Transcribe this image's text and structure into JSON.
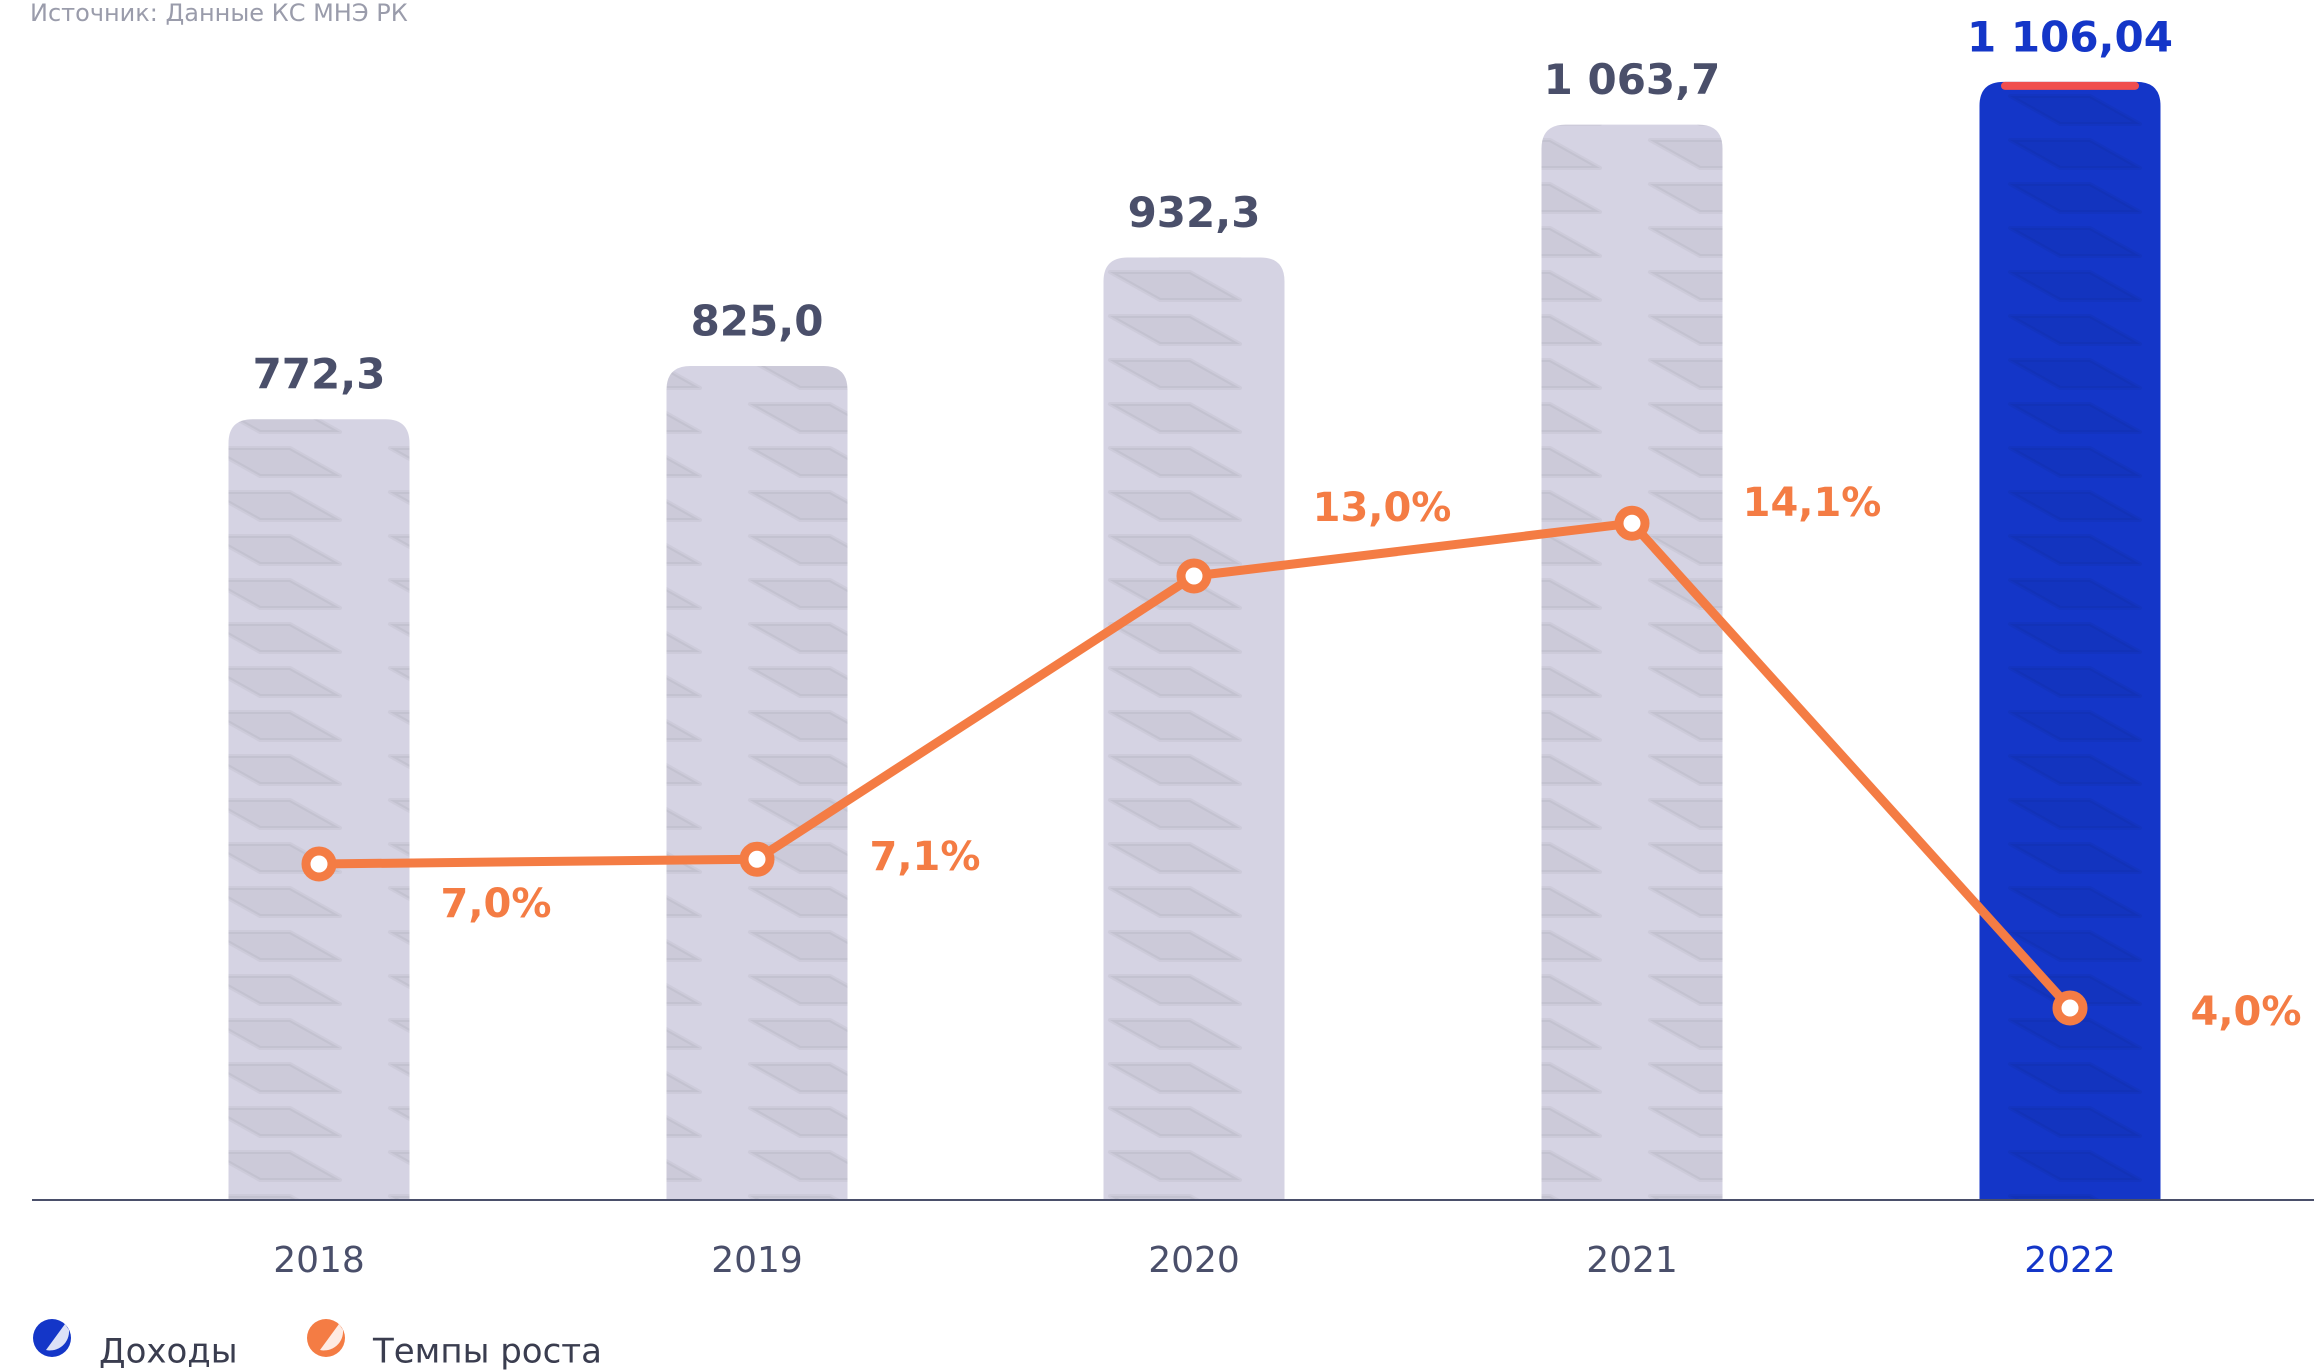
{
  "chart_data": {
    "type": "bar_line",
    "source": "Источник: Данные КС МНЭ РК",
    "categories": [
      "2018",
      "2019",
      "2020",
      "2021",
      "2022"
    ],
    "category_colors": [
      "#4a4f6a",
      "#4a4f6a",
      "#4a4f6a",
      "#4a4f6a",
      "#1436c8"
    ],
    "ylim": [
      0,
      1187
    ],
    "y2lim": [
      0,
      25
    ],
    "series": [
      {
        "name": "Доходы",
        "type": "bar",
        "colors": [
          "#d5d3e3",
          "#d5d3e3",
          "#d5d3e3",
          "#d5d3e3",
          "#1436c8"
        ],
        "label_colors": [
          "#4a4f6a",
          "#4a4f6a",
          "#4a4f6a",
          "#4a4f6a",
          "#1436c8"
        ],
        "legend_color": "#1436c8",
        "values": [
          772.3,
          825.0,
          932.3,
          1063.7,
          1106.04
        ],
        "value_labels": [
          "772,3",
          "825,0",
          "932,3",
          "1 063,7",
          "1 106,04"
        ]
      },
      {
        "name": "Темпы роста",
        "type": "line",
        "axis": "y2",
        "color": "#f47c44",
        "values": [
          7.0,
          7.1,
          13.0,
          14.1,
          4.0
        ],
        "value_labels": [
          "7,0%",
          "7,1%",
          "13,0%",
          "14,1%",
          "4,0%"
        ]
      }
    ]
  }
}
